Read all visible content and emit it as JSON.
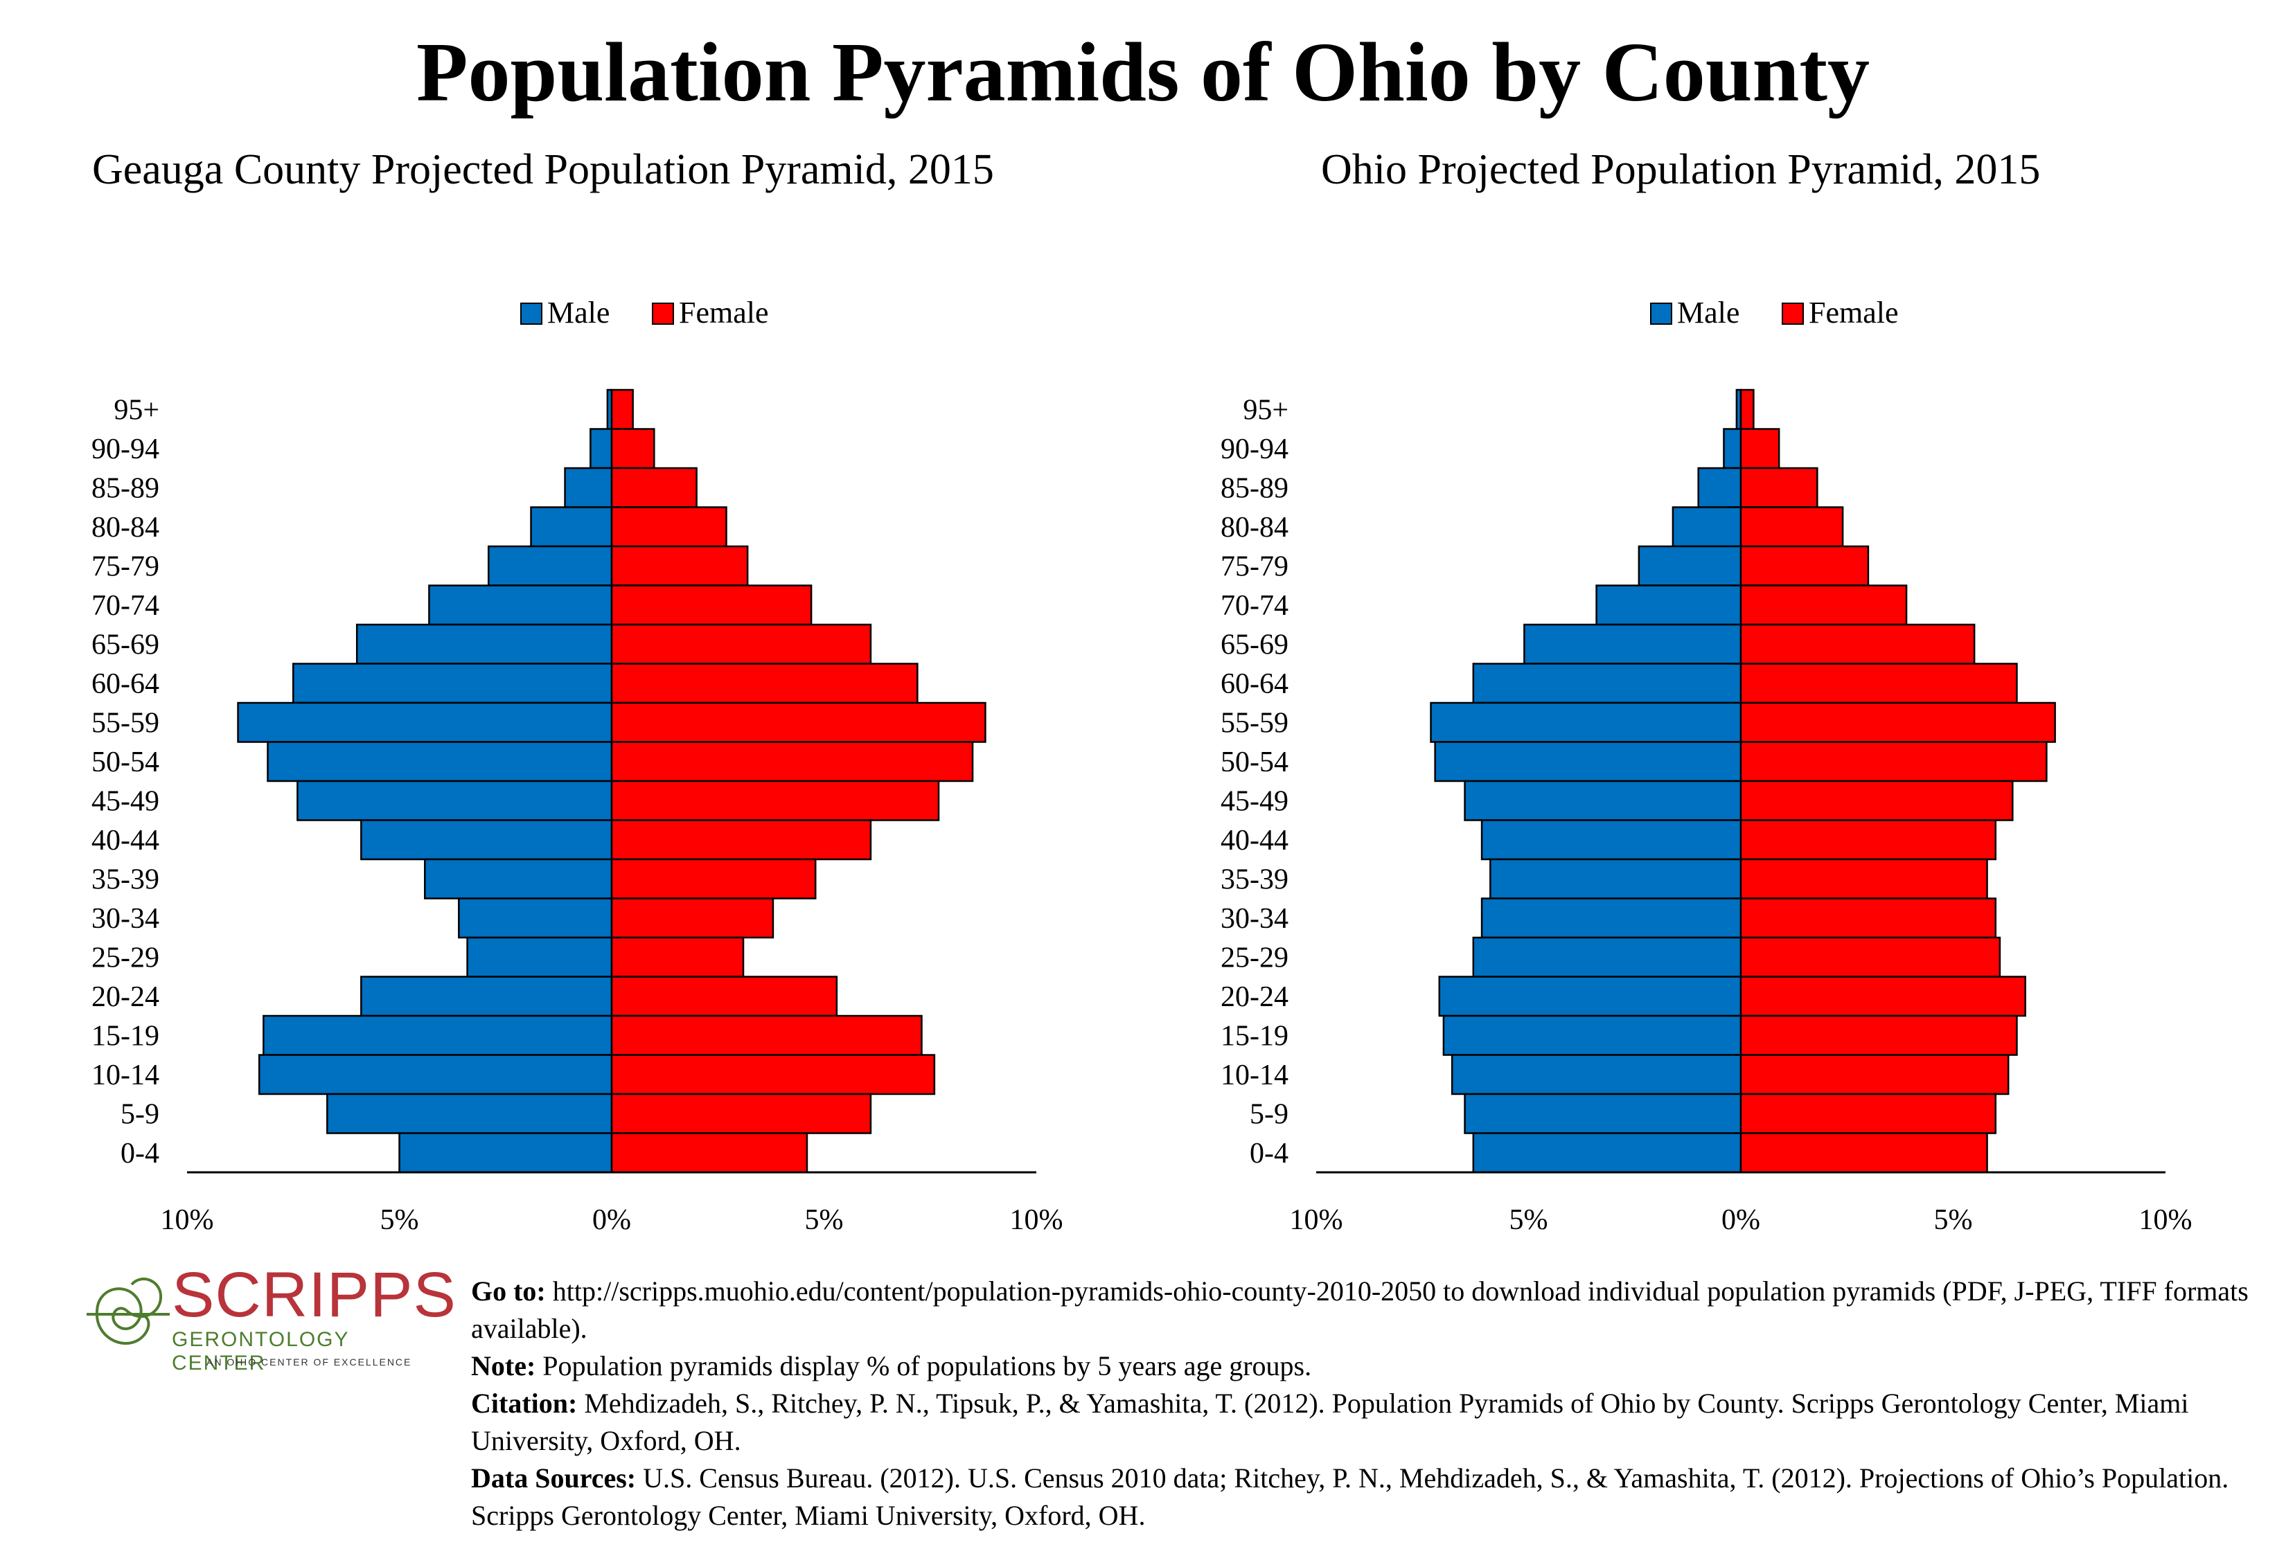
{
  "title": "Population Pyramids of Ohio by County",
  "legend": {
    "male": "Male",
    "female": "Female"
  },
  "colors": {
    "male": "#0070c0",
    "female": "#ff0000"
  },
  "chart_data": [
    {
      "type": "bar",
      "orientation": "horizontal-pyramid",
      "title": "Geauga County Projected Population Pyramid, 2015",
      "xlim": [
        -10,
        10
      ],
      "xticks": [
        "10%",
        "5%",
        "0%",
        "5%",
        "10%"
      ],
      "categories": [
        "95+",
        "90-94",
        "85-89",
        "80-84",
        "75-79",
        "70-74",
        "65-69",
        "60-64",
        "55-59",
        "50-54",
        "45-49",
        "40-44",
        "35-39",
        "30-34",
        "25-29",
        "20-24",
        "15-19",
        "10-14",
        "5-9",
        "0-4"
      ],
      "series": [
        {
          "name": "Male",
          "values": [
            0.1,
            0.5,
            1.1,
            1.9,
            2.9,
            4.3,
            6.0,
            7.5,
            8.8,
            8.1,
            7.4,
            5.9,
            4.4,
            3.6,
            3.4,
            5.9,
            8.2,
            8.3,
            6.7,
            5.0
          ]
        },
        {
          "name": "Female",
          "values": [
            0.5,
            1.0,
            2.0,
            2.7,
            3.2,
            4.7,
            6.1,
            7.2,
            8.8,
            8.5,
            7.7,
            6.1,
            4.8,
            3.8,
            3.1,
            5.3,
            7.3,
            7.6,
            6.1,
            4.6
          ]
        }
      ]
    },
    {
      "type": "bar",
      "orientation": "horizontal-pyramid",
      "title": "Ohio Projected Population Pyramid, 2015",
      "xlim": [
        -10,
        10
      ],
      "xticks": [
        "10%",
        "5%",
        "0%",
        "5%",
        "10%"
      ],
      "categories": [
        "95+",
        "90-94",
        "85-89",
        "80-84",
        "75-79",
        "70-74",
        "65-69",
        "60-64",
        "55-59",
        "50-54",
        "45-49",
        "40-44",
        "35-39",
        "30-34",
        "25-29",
        "20-24",
        "15-19",
        "10-14",
        "5-9",
        "0-4"
      ],
      "series": [
        {
          "name": "Male",
          "values": [
            0.1,
            0.4,
            1.0,
            1.6,
            2.4,
            3.4,
            5.1,
            6.3,
            7.3,
            7.2,
            6.5,
            6.1,
            5.9,
            6.1,
            6.3,
            7.1,
            7.0,
            6.8,
            6.5,
            6.3
          ]
        },
        {
          "name": "Female",
          "values": [
            0.3,
            0.9,
            1.8,
            2.4,
            3.0,
            3.9,
            5.5,
            6.5,
            7.4,
            7.2,
            6.4,
            6.0,
            5.8,
            6.0,
            6.1,
            6.7,
            6.5,
            6.3,
            6.0,
            5.8
          ]
        }
      ]
    }
  ],
  "logo": {
    "name": "SCRIPPS",
    "subtitle": "GERONTOLOGY CENTER",
    "tagline": "AN OHIO CENTER OF EXCELLENCE"
  },
  "footer": {
    "goto_label": "Go to:",
    "goto_text": " http://scripps.muohio.edu/content/population-pyramids-ohio-county-2010-2050 to download individual population pyramids (PDF, J-PEG, TIFF formats available).",
    "note_label": "Note:",
    "note_text": " Population pyramids display % of populations by 5 years age groups.",
    "citation_label": "Citation:",
    "citation_text": " Mehdizadeh, S., Ritchey, P. N., Tipsuk, P., & Yamashita, T. (2012). Population Pyramids of Ohio by County. Scripps Gerontology Center, Miami University, Oxford, OH.",
    "sources_label": "Data Sources:",
    "sources_text": " U.S. Census Bureau. (2012). U.S. Census 2010 data; Ritchey, P. N., Mehdizadeh, S., & Yamashita, T. (2012). Projections of Ohio’s Population. Scripps Gerontology Center, Miami University, Oxford, OH."
  }
}
